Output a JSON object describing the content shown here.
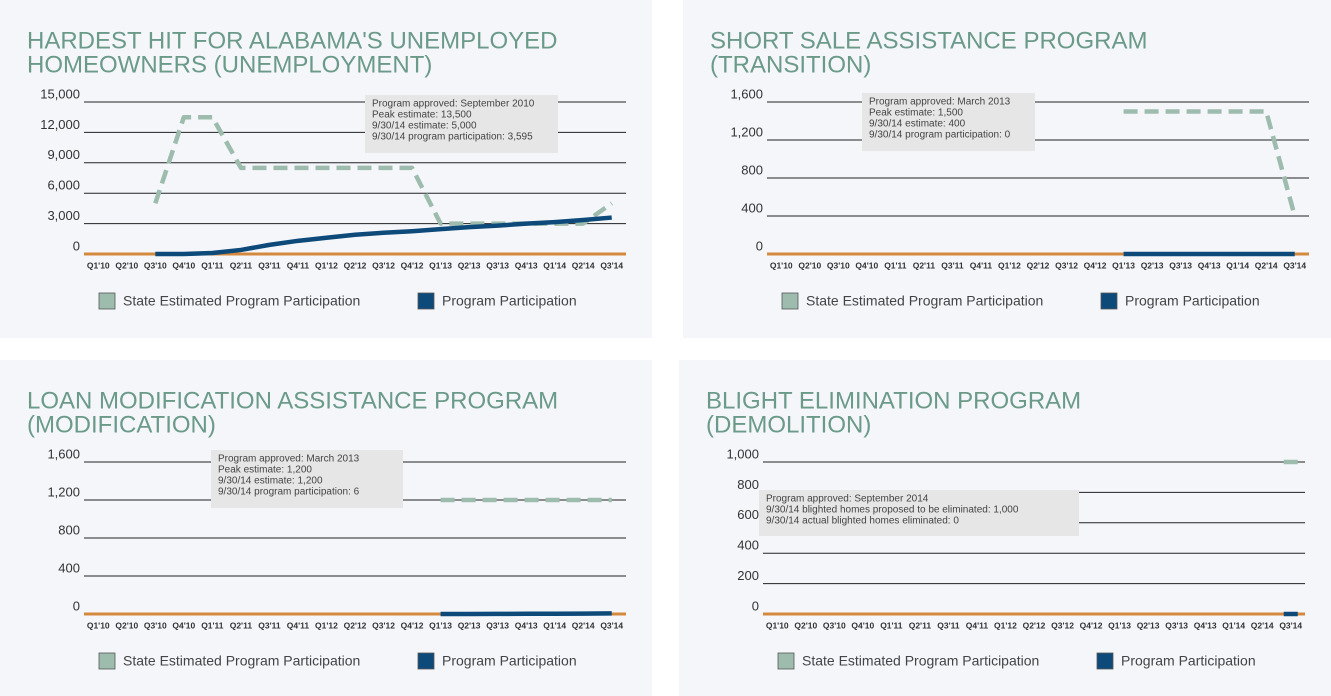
{
  "chart_data": [
    {
      "type": "line",
      "title": [
        "HARDEST HIT FOR ALABAMA'S UNEMPLOYED",
        "HOMEOWNERS (UNEMPLOYMENT)"
      ],
      "annotation": [
        "Program approved: September 2010",
        "Peak estimate: 13,500",
        "9/30/14 estimate: 5,000",
        "9/30/14 program participation: 3,595"
      ],
      "categories": [
        "Q1'10",
        "Q2'10",
        "Q3'10",
        "Q4'10",
        "Q1'11",
        "Q2'11",
        "Q3'11",
        "Q4'11",
        "Q1'12",
        "Q2'12",
        "Q3'12",
        "Q4'12",
        "Q1'13",
        "Q2'13",
        "Q3'13",
        "Q4'13",
        "Q1'14",
        "Q2'14",
        "Q3'14"
      ],
      "ylim": [
        0,
        15000
      ],
      "yticks": [
        0,
        {
          "value": 3000,
          "label": "3,000"
        },
        {
          "value": 6000,
          "label": "6,000"
        },
        {
          "value": 9000,
          "label": "9,000"
        },
        {
          "value": 12000,
          "label": "12,000"
        },
        {
          "value": 15000,
          "label": "15,000"
        }
      ],
      "grid": true,
      "series": [
        {
          "name": "State Estimated Program Participation",
          "color": "#9dbcad",
          "dashed": true,
          "values": [
            null,
            null,
            5000,
            13500,
            13500,
            8500,
            8500,
            8500,
            8500,
            8500,
            8500,
            8500,
            3000,
            3000,
            3000,
            3000,
            3000,
            3000,
            5000
          ]
        },
        {
          "name": "Program Participation",
          "color": "#0d4a7a",
          "dashed": false,
          "values": [
            null,
            null,
            0,
            0,
            100,
            400,
            900,
            1300,
            1600,
            1900,
            2100,
            2250,
            2450,
            2650,
            2800,
            3000,
            3150,
            3350,
            3595
          ]
        }
      ]
    },
    {
      "type": "line",
      "title": [
        "SHORT SALE ASSISTANCE PROGRAM",
        "(TRANSITION)"
      ],
      "annotation": [
        "Program approved: March 2013",
        "Peak estimate: 1,500",
        "9/30/14 estimate: 400",
        "9/30/14 program participation: 0"
      ],
      "categories": [
        "Q1'10",
        "Q2'10",
        "Q3'10",
        "Q4'10",
        "Q1'11",
        "Q2'11",
        "Q3'11",
        "Q4'11",
        "Q1'12",
        "Q2'12",
        "Q3'12",
        "Q4'12",
        "Q1'13",
        "Q2'13",
        "Q3'13",
        "Q4'13",
        "Q1'14",
        "Q2'14",
        "Q3'14"
      ],
      "ylim": [
        0,
        1600
      ],
      "yticks": [
        0,
        400,
        800,
        {
          "value": 1200,
          "label": "1,200"
        },
        {
          "value": 1600,
          "label": "1,600"
        }
      ],
      "grid": true,
      "series": [
        {
          "name": "State Estimated Program Participation",
          "color": "#9dbcad",
          "dashed": true,
          "values": [
            null,
            null,
            null,
            null,
            null,
            null,
            null,
            null,
            null,
            null,
            null,
            null,
            1500,
            1500,
            1500,
            1500,
            1500,
            1500,
            400
          ]
        },
        {
          "name": "Program Participation",
          "color": "#0d4a7a",
          "dashed": false,
          "values": [
            null,
            null,
            null,
            null,
            null,
            null,
            null,
            null,
            null,
            null,
            null,
            null,
            0,
            0,
            0,
            0,
            0,
            0,
            0
          ]
        }
      ]
    },
    {
      "type": "line",
      "title": [
        "LOAN MODIFICATION ASSISTANCE PROGRAM",
        "(MODIFICATION)"
      ],
      "annotation": [
        "Program approved: March 2013",
        "Peak estimate: 1,200",
        "9/30/14 estimate: 1,200",
        "9/30/14 program participation: 6"
      ],
      "categories": [
        "Q1'10",
        "Q2'10",
        "Q3'10",
        "Q4'10",
        "Q1'11",
        "Q2'11",
        "Q3'11",
        "Q4'11",
        "Q1'12",
        "Q2'12",
        "Q3'12",
        "Q4'12",
        "Q1'13",
        "Q2'13",
        "Q3'13",
        "Q4'13",
        "Q1'14",
        "Q2'14",
        "Q3'14"
      ],
      "ylim": [
        0,
        1600
      ],
      "yticks": [
        0,
        400,
        800,
        {
          "value": 1200,
          "label": "1,200"
        },
        {
          "value": 1600,
          "label": "1,600"
        }
      ],
      "grid": true,
      "series": [
        {
          "name": "State Estimated Program Participation",
          "color": "#9dbcad",
          "dashed": true,
          "values": [
            null,
            null,
            null,
            null,
            null,
            null,
            null,
            null,
            null,
            null,
            null,
            null,
            1200,
            1200,
            1200,
            1200,
            1200,
            1200,
            1200
          ]
        },
        {
          "name": "Program Participation",
          "color": "#0d4a7a",
          "dashed": false,
          "values": [
            null,
            null,
            null,
            null,
            null,
            null,
            null,
            null,
            null,
            null,
            null,
            null,
            0,
            0,
            1,
            2,
            3,
            4,
            6
          ]
        }
      ]
    },
    {
      "type": "line",
      "title": [
        "BLIGHT ELIMINATION PROGRAM",
        "(DEMOLITION)"
      ],
      "annotation": [
        "Program approved: September 2014",
        "9/30/14 blighted homes proposed to be eliminated: 1,000",
        "9/30/14 actual blighted homes eliminated: 0"
      ],
      "categories": [
        "Q1'10",
        "Q2'10",
        "Q3'10",
        "Q4'10",
        "Q1'11",
        "Q2'11",
        "Q3'11",
        "Q4'11",
        "Q1'12",
        "Q2'12",
        "Q3'12",
        "Q4'12",
        "Q1'13",
        "Q2'13",
        "Q3'13",
        "Q4'13",
        "Q1'14",
        "Q2'14",
        "Q3'14"
      ],
      "ylim": [
        0,
        1000
      ],
      "yticks": [
        0,
        200,
        400,
        600,
        800,
        {
          "value": 1000,
          "label": "1,000"
        }
      ],
      "grid": true,
      "series": [
        {
          "name": "State Estimated Program Participation",
          "color": "#9dbcad",
          "dashed": true,
          "values": [
            null,
            null,
            null,
            null,
            null,
            null,
            null,
            null,
            null,
            null,
            null,
            null,
            null,
            null,
            null,
            null,
            null,
            null,
            1000
          ]
        },
        {
          "name": "Program Participation",
          "color": "#0d4a7a",
          "dashed": false,
          "values": [
            null,
            null,
            null,
            null,
            null,
            null,
            null,
            null,
            null,
            null,
            null,
            null,
            null,
            null,
            null,
            null,
            null,
            null,
            0
          ]
        }
      ]
    }
  ]
}
